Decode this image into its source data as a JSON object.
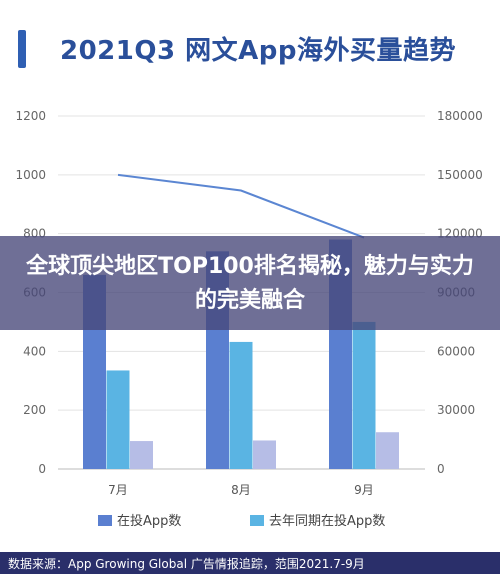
{
  "title": "2021Q3 网文App海外买量趋势",
  "overlay_text": "全球顶尖地区TOP100排名揭秘，魅力与实力的完美融合",
  "footer": "数据来源：App Growing Global 广告情报追踪，范围2021.7-9月",
  "colors": {
    "in_launch": "#5a7fd0",
    "last_year": "#5ab4e3",
    "third": "#b6bde6",
    "line": "#5b86d2",
    "title": "#2a4f9a"
  },
  "chart_data": {
    "type": "bar",
    "categories": [
      "7月",
      "8月",
      "9月"
    ],
    "series": [
      {
        "name": "在投App数",
        "values": [
          660,
          740,
          780
        ],
        "axis": "left"
      },
      {
        "name": "去年同期在投App数",
        "values": [
          335,
          432,
          500
        ],
        "axis": "left"
      },
      {
        "values": [
          95,
          97,
          125
        ],
        "axis": "left"
      }
    ],
    "line_series": {
      "values": [
        150000,
        142000,
        118000
      ],
      "axis": "right"
    },
    "left_axis": {
      "ylim": [
        0,
        1200
      ],
      "ticks": [
        "0",
        "200",
        "400",
        "600",
        "800",
        "1000",
        "1200"
      ]
    },
    "right_axis": {
      "ylim": [
        0,
        180000
      ],
      "ticks": [
        "0",
        "30000",
        "60000",
        "90000",
        "120000",
        "150000",
        "180000"
      ]
    },
    "legend": [
      "在投App数",
      "去年同期在投App数"
    ],
    "legend_position": "bottom",
    "grid": true
  }
}
